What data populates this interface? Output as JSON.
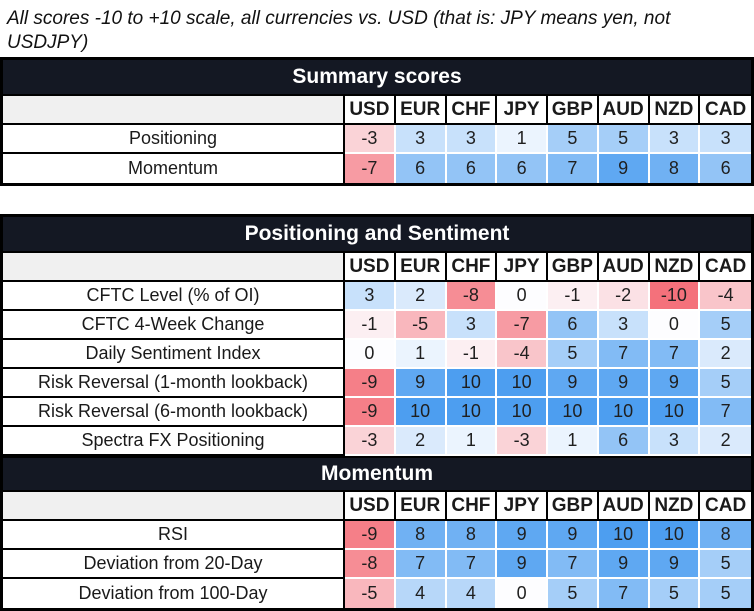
{
  "chart_data": {
    "type": "heatmap",
    "title": "All scores -10 to +10 scale, all currencies vs. USD (that is: JPY means yen, not USDJPY)",
    "columns": [
      "USD",
      "EUR",
      "CHF",
      "JPY",
      "GBP",
      "AUD",
      "NZD",
      "CAD"
    ],
    "value_range": [
      -10,
      10
    ],
    "colorscale": {
      "negative_max": "#F4717B",
      "midpoint": "#FDFDFF",
      "positive_max": "#4D9EF0"
    },
    "style_colors": {
      "section_header_bg": "#141823",
      "section_header_text": "#FFFFFF",
      "corner_cell_bg": "#F0F0F0",
      "border": "#000000"
    },
    "tables": [
      {
        "sections": [
          {
            "header": "Summary scores",
            "rows": [
              {
                "label": "Positioning",
                "values": [
                  -3,
                  3,
                  3,
                  1,
                  5,
                  5,
                  3,
                  3
                ]
              },
              {
                "label": "Momentum",
                "values": [
                  -7,
                  6,
                  6,
                  6,
                  7,
                  9,
                  8,
                  6
                ]
              }
            ]
          }
        ]
      },
      {
        "sections": [
          {
            "header": "Positioning and Sentiment",
            "rows": [
              {
                "label": "CFTC Level (% of OI)",
                "values": [
                  3,
                  2,
                  -8,
                  0,
                  -1,
                  -2,
                  -10,
                  -4
                ]
              },
              {
                "label": "CFTC 4-Week Change",
                "values": [
                  -1,
                  -5,
                  3,
                  -7,
                  6,
                  3,
                  0,
                  5
                ]
              },
              {
                "label": "Daily Sentiment Index",
                "values": [
                  0,
                  1,
                  -1,
                  -4,
                  5,
                  7,
                  7,
                  2
                ]
              },
              {
                "label": "Risk Reversal (1-month lookback)",
                "values": [
                  -9,
                  9,
                  10,
                  10,
                  9,
                  9,
                  9,
                  5
                ]
              },
              {
                "label": "Risk Reversal (6-month lookback)",
                "values": [
                  -9,
                  10,
                  10,
                  10,
                  10,
                  10,
                  10,
                  7
                ]
              },
              {
                "label": "Spectra FX Positioning",
                "values": [
                  -3,
                  2,
                  1,
                  -3,
                  1,
                  6,
                  3,
                  2
                ]
              }
            ]
          },
          {
            "header": "Momentum",
            "rows": [
              {
                "label": "RSI",
                "values": [
                  -9,
                  8,
                  8,
                  9,
                  9,
                  10,
                  10,
                  8
                ]
              },
              {
                "label": "Deviation from 20-Day",
                "values": [
                  -8,
                  7,
                  7,
                  9,
                  7,
                  9,
                  9,
                  5
                ]
              },
              {
                "label": "Deviation from 100-Day",
                "values": [
                  -5,
                  4,
                  4,
                  0,
                  5,
                  7,
                  5,
                  5
                ]
              }
            ]
          }
        ]
      }
    ]
  }
}
